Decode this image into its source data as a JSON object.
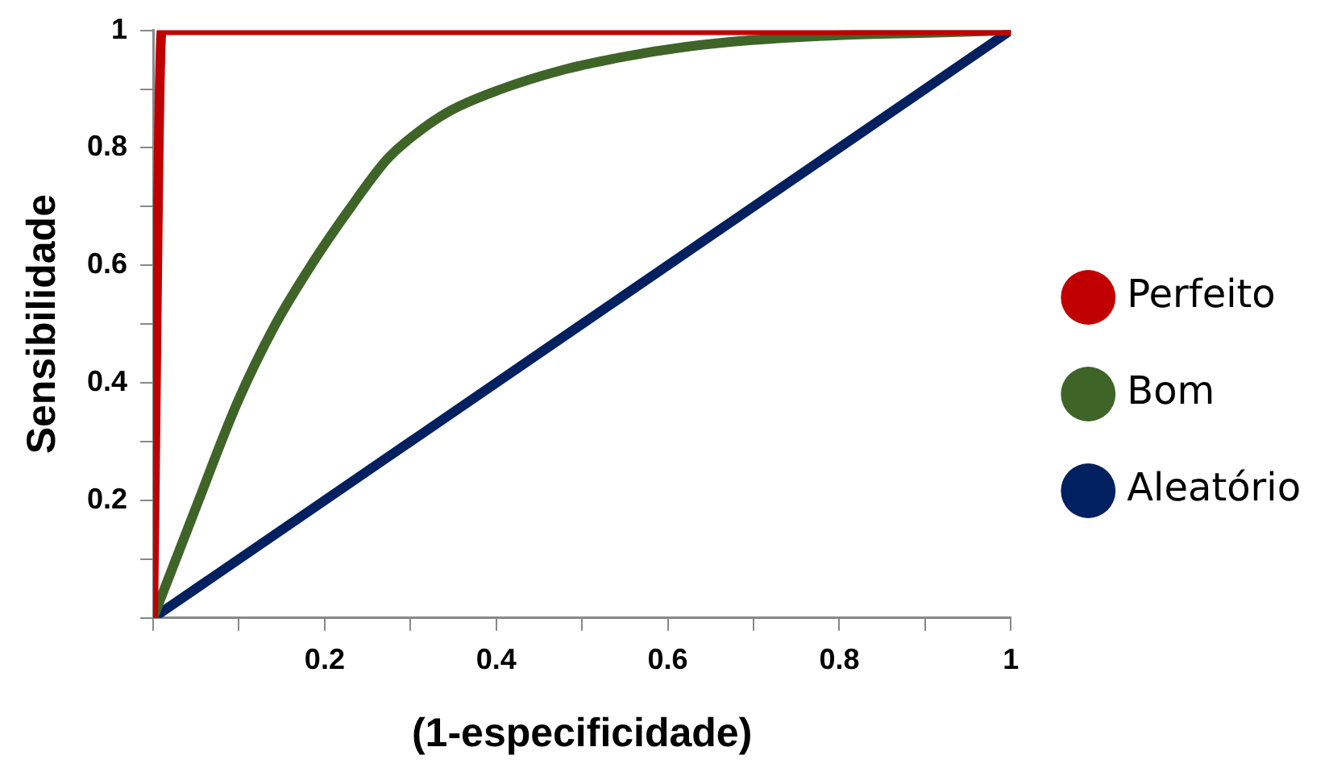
{
  "chart_data": {
    "type": "line",
    "xlabel": "(1-especificidade)",
    "ylabel": "Sensibilidade",
    "xlim": [
      0,
      1
    ],
    "ylim": [
      0,
      1
    ],
    "xticks": [
      {
        "value": 0,
        "label": null
      },
      {
        "value": 0.1,
        "label": null
      },
      0.2,
      {
        "value": 0.3,
        "label": null
      },
      0.4,
      {
        "value": 0.5,
        "label": null
      },
      0.6,
      {
        "value": 0.7,
        "label": null
      },
      0.8,
      {
        "value": 0.9,
        "label": null
      },
      1
    ],
    "yticks": [
      {
        "value": 0,
        "label": null
      },
      {
        "value": 0.1,
        "label": null
      },
      0.2,
      {
        "value": 0.3,
        "label": null
      },
      0.4,
      {
        "value": 0.5,
        "label": null
      },
      0.6,
      {
        "value": 0.7,
        "label": null
      },
      0.8,
      {
        "value": 0.9,
        "label": null
      },
      1
    ],
    "grid": false,
    "legend": "right",
    "marker": "none",
    "line_style": "solid",
    "series": [
      {
        "name": "Perfeito",
        "color": "#c00000",
        "x": [
          0,
          0.01,
          1
        ],
        "values": [
          0,
          1,
          1
        ]
      },
      {
        "name": "Bom",
        "color": "#3f6428",
        "x": [
          0,
          0.047,
          0.098,
          0.142,
          0.185,
          0.229,
          0.273,
          0.302,
          0.345,
          0.404,
          0.476,
          0.549,
          0.622,
          0.695,
          0.804,
          0.913,
          1
        ],
        "values": [
          0,
          0.177,
          0.366,
          0.498,
          0.602,
          0.696,
          0.781,
          0.819,
          0.862,
          0.899,
          0.932,
          0.955,
          0.972,
          0.983,
          0.992,
          0.996,
          1
        ]
      },
      {
        "name": "Aleatório",
        "color": "#002060",
        "x": [
          0,
          1
        ],
        "values": [
          0,
          1
        ]
      }
    ]
  }
}
